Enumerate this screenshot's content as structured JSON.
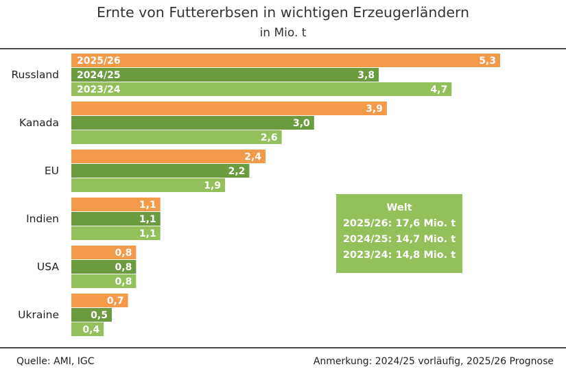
{
  "colors": {
    "s2025": "#f39a4a",
    "s2024": "#6a9b3e",
    "s2023": "#93c05a",
    "text": "#ffffff"
  },
  "chart_data": {
    "type": "bar",
    "orientation": "horizontal",
    "title": "Ernte von Futtererbsen in wichtigen Erzeugerländern",
    "subtitle": "in Mio. t",
    "categories": [
      "Russland",
      "Kanada",
      "EU",
      "Indien",
      "USA",
      "Ukraine"
    ],
    "series": [
      {
        "name": "2025/26",
        "values": [
          5.3,
          3.9,
          2.4,
          1.1,
          0.8,
          0.7
        ],
        "labels": [
          "5,3",
          "3,9",
          "2,4",
          "1,1",
          "0,8",
          "0,7"
        ]
      },
      {
        "name": "2024/25",
        "values": [
          3.8,
          3.0,
          2.2,
          1.1,
          0.8,
          0.5
        ],
        "labels": [
          "3,8",
          "3,0",
          "2,2",
          "1,1",
          "0,8",
          "0,5"
        ]
      },
      {
        "name": "2023/24",
        "values": [
          4.7,
          2.6,
          1.9,
          1.1,
          0.8,
          0.4
        ],
        "labels": [
          "4,7",
          "2,6",
          "1,9",
          "1,1",
          "0,8",
          "0,4"
        ]
      }
    ],
    "xlim": [
      0,
      5.3
    ],
    "grid": false,
    "legend": "inline in first category bars"
  },
  "welt_box": {
    "title": "Welt",
    "lines": [
      "2025/26: 17,6 Mio. t",
      "2024/25: 14,7 Mio. t",
      "2023/24: 14,8 Mio. t"
    ]
  },
  "footer": {
    "source": "Quelle:  AMI, IGC",
    "note": "Anmerkung: 2024/25 vorläufig, 2025/26 Prognose"
  }
}
